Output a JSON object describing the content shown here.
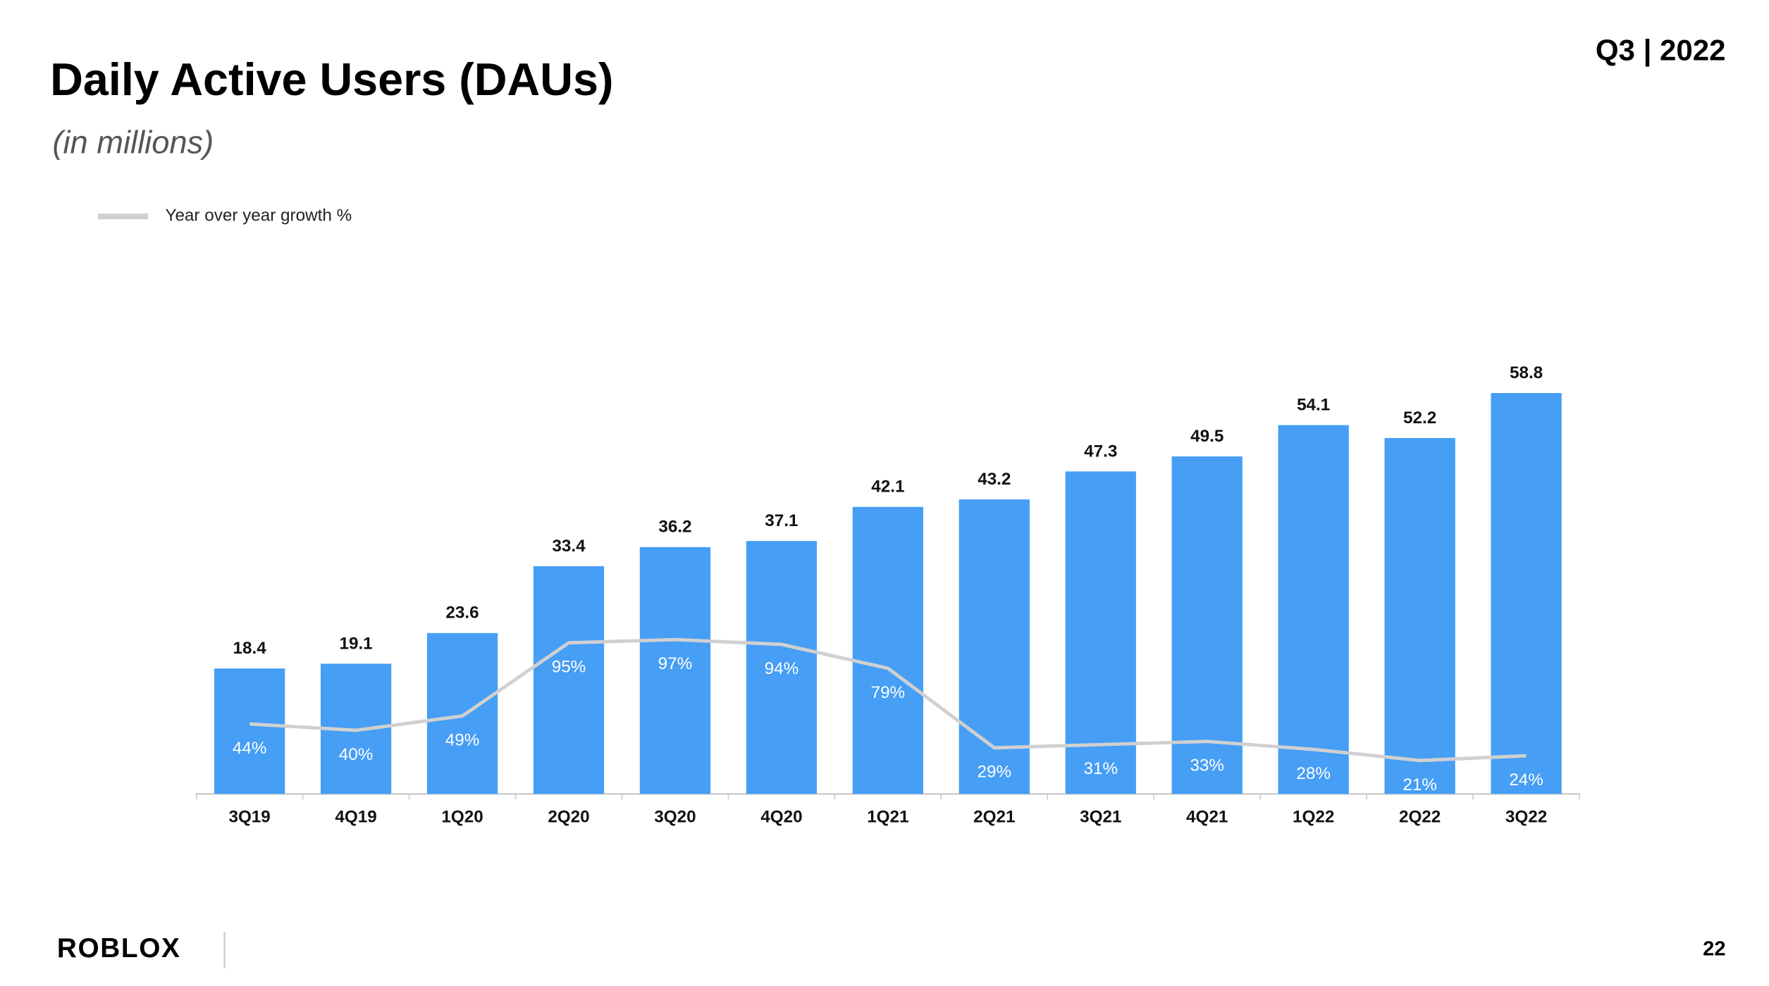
{
  "chart_data": {
    "type": "bar",
    "title": "Daily Active Users (DAUs)",
    "subtitle": "(in millions)",
    "categories": [
      "3Q19",
      "4Q19",
      "1Q20",
      "2Q20",
      "3Q20",
      "4Q20",
      "1Q21",
      "2Q21",
      "3Q21",
      "4Q21",
      "1Q22",
      "2Q22",
      "3Q22"
    ],
    "values": [
      18.4,
      19.1,
      23.6,
      33.4,
      36.2,
      37.1,
      42.1,
      43.2,
      47.3,
      49.5,
      54.1,
      52.2,
      58.8
    ],
    "color": "#469ef5",
    "ylim": [
      0,
      70
    ],
    "y2lim": [
      0,
      300
    ],
    "series": [
      {
        "name": "Year over year growth %",
        "type": "line",
        "axis": "y2",
        "color": "#d0d0d0",
        "values": [
          44,
          40,
          49,
          95,
          97,
          94,
          79,
          29,
          31,
          33,
          28,
          21,
          24
        ],
        "value_labels": [
          "44%",
          "40%",
          "49%",
          "95%",
          "97%",
          "94%",
          "79%",
          "29%",
          "31%",
          "33%",
          "28%",
          "21%",
          "24%"
        ]
      }
    ],
    "legend": "top-left"
  },
  "slide": {
    "period": "Q3 | 2022",
    "page": "22",
    "logo": "ROBLOX"
  }
}
